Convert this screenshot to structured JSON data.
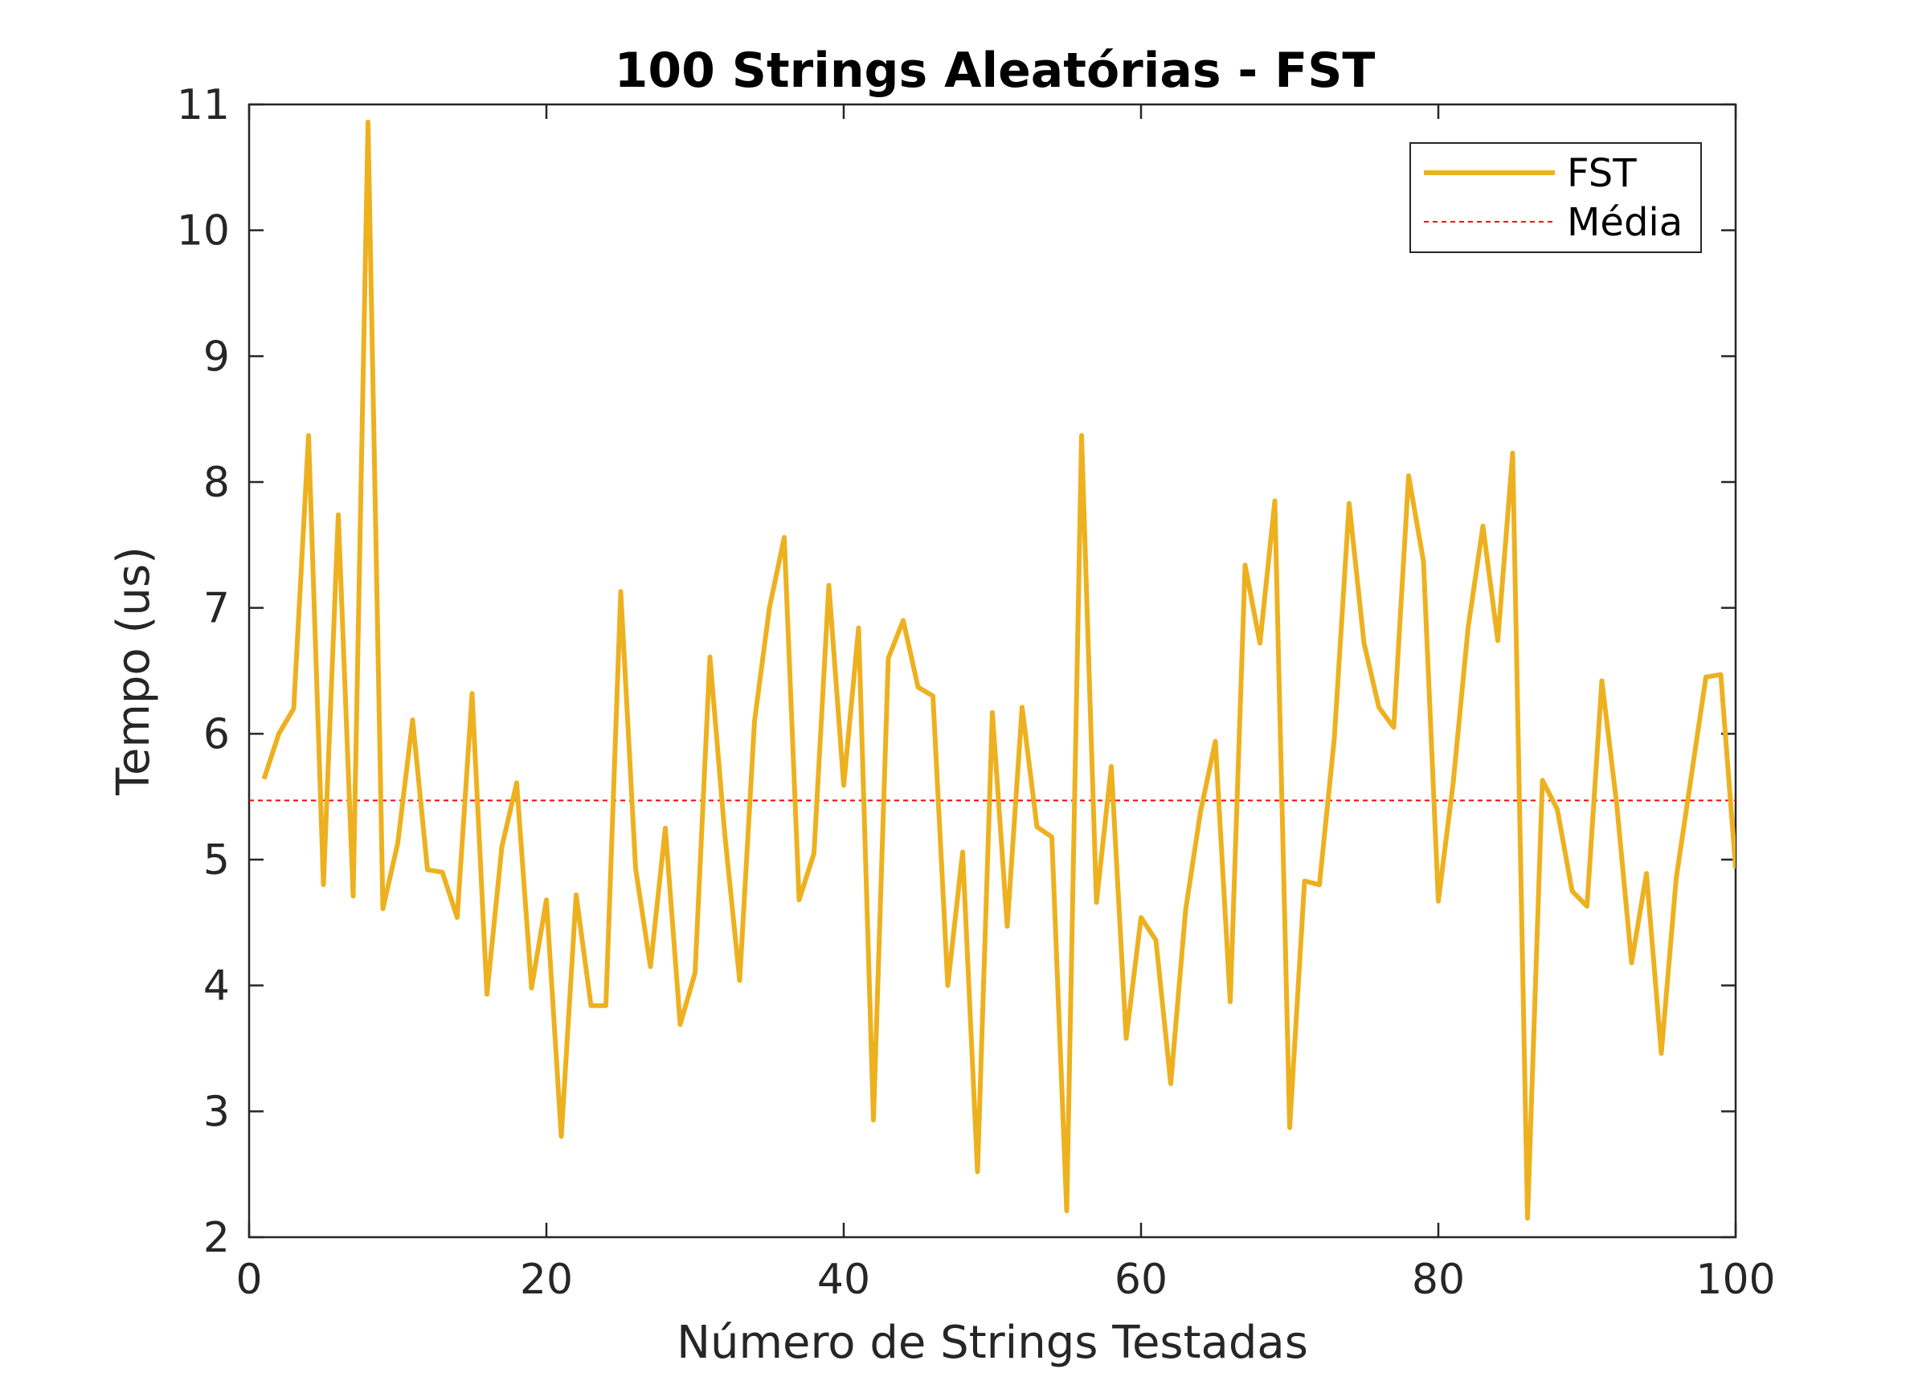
{
  "chart_data": {
    "type": "line",
    "title": "100 Strings Aleatórias - FST",
    "xlabel": "Número de Strings Testadas",
    "ylabel": "Tempo (us)",
    "xlim": [
      0,
      100
    ],
    "ylim": [
      2,
      11
    ],
    "xticks": [
      0,
      20,
      40,
      60,
      80,
      100
    ],
    "yticks": [
      2,
      3,
      4,
      5,
      6,
      7,
      8,
      9,
      10,
      11
    ],
    "grid": false,
    "legend_position": "top-right",
    "series": [
      {
        "name": "FST",
        "color": "#EDB120",
        "style": "solid",
        "x": [
          1,
          2,
          3,
          4,
          5,
          6,
          7,
          8,
          9,
          10,
          11,
          12,
          13,
          14,
          15,
          16,
          17,
          18,
          19,
          20,
          21,
          22,
          23,
          24,
          25,
          26,
          27,
          28,
          29,
          30,
          31,
          32,
          33,
          34,
          35,
          36,
          37,
          38,
          39,
          40,
          41,
          42,
          43,
          44,
          45,
          46,
          47,
          48,
          49,
          50,
          51,
          52,
          53,
          54,
          55,
          56,
          57,
          58,
          59,
          60,
          61,
          62,
          63,
          64,
          65,
          66,
          67,
          68,
          69,
          70,
          71,
          72,
          73,
          74,
          75,
          76,
          77,
          78,
          79,
          80,
          81,
          82,
          83,
          84,
          85,
          86,
          87,
          88,
          89,
          90,
          91,
          92,
          93,
          94,
          95,
          96,
          97,
          98,
          99,
          100
        ],
        "values": [
          5.64,
          6.0,
          6.2,
          8.37,
          4.8,
          7.74,
          4.71,
          10.86,
          4.61,
          5.13,
          6.11,
          4.92,
          4.9,
          4.54,
          6.32,
          3.93,
          5.1,
          5.61,
          3.98,
          4.68,
          2.8,
          4.72,
          3.84,
          3.84,
          7.13,
          4.93,
          4.15,
          5.25,
          3.69,
          4.1,
          6.61,
          5.2,
          4.04,
          6.1,
          7.0,
          7.56,
          4.68,
          5.05,
          7.18,
          5.59,
          6.84,
          2.93,
          6.6,
          6.9,
          6.37,
          6.3,
          4.0,
          5.06,
          2.52,
          6.17,
          4.47,
          6.21,
          5.26,
          5.18,
          2.21,
          8.37,
          4.66,
          5.74,
          3.58,
          4.54,
          4.36,
          3.22,
          4.6,
          5.38,
          5.94,
          3.87,
          7.34,
          6.72,
          7.85,
          2.87,
          4.83,
          4.8,
          5.96,
          7.83,
          6.72,
          6.21,
          6.05,
          8.05,
          7.37,
          4.67,
          5.61,
          6.84,
          7.65,
          6.74,
          8.23,
          2.15,
          5.63,
          5.4,
          4.75,
          4.63,
          6.42,
          5.44,
          4.18,
          4.89,
          3.46,
          4.85,
          5.65,
          6.45,
          6.47,
          4.93
        ]
      },
      {
        "name": "Média",
        "color": "#FF0000",
        "style": "dashed",
        "x": [
          0,
          100
        ],
        "values": [
          5.47,
          5.47
        ]
      }
    ]
  }
}
